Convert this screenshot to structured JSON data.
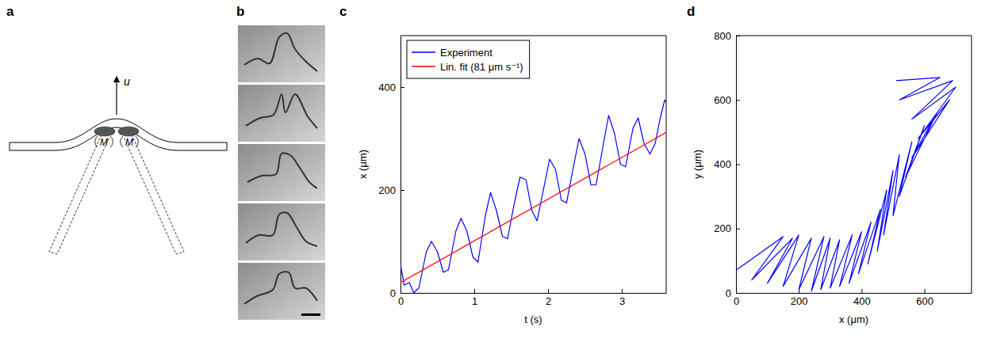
{
  "panel_labels": [
    "a",
    "b",
    "c",
    "d"
  ],
  "diagram": {
    "velocity_label": "u",
    "motor_labels": [
      "M",
      "M"
    ]
  },
  "chart_data": [
    {
      "type": "line",
      "x_label": "t (s)",
      "y_label": "x (μm)",
      "xlim": [
        0,
        3.6
      ],
      "xticks": [
        0,
        1,
        2,
        3
      ],
      "ylim": [
        0,
        500
      ],
      "yticks": [
        0,
        200,
        400
      ],
      "legend": "upper left",
      "series": [
        {
          "name": "Experiment",
          "color": "#0000ff",
          "x": [
            0,
            0.05,
            0.12,
            0.18,
            0.25,
            0.35,
            0.42,
            0.5,
            0.58,
            0.65,
            0.75,
            0.82,
            0.9,
            0.98,
            1.05,
            1.15,
            1.22,
            1.3,
            1.38,
            1.45,
            1.55,
            1.62,
            1.7,
            1.78,
            1.85,
            1.95,
            2.02,
            2.1,
            2.18,
            2.25,
            2.35,
            2.42,
            2.5,
            2.58,
            2.65,
            2.75,
            2.82,
            2.9,
            2.98,
            3.05,
            3.15,
            3.22,
            3.3,
            3.38,
            3.45,
            3.52,
            3.58,
            3.6
          ],
          "values": [
            55,
            15,
            20,
            0,
            10,
            80,
            100,
            80,
            40,
            45,
            120,
            145,
            120,
            70,
            60,
            150,
            195,
            160,
            110,
            105,
            180,
            225,
            220,
            160,
            140,
            210,
            260,
            240,
            180,
            175,
            250,
            300,
            270,
            210,
            210,
            290,
            345,
            310,
            250,
            245,
            320,
            340,
            290,
            270,
            290,
            340,
            375,
            370
          ]
        },
        {
          "name": "Lin. fit (81 μm s⁻¹)",
          "color": "#ff0000",
          "x": [
            0,
            3.6
          ],
          "values": [
            20,
            312
          ]
        }
      ]
    },
    {
      "type": "line",
      "x_label": "x (μm)",
      "y_label": "y (μm)",
      "xlim": [
        0,
        750
      ],
      "xticks": [
        0,
        200,
        400,
        600
      ],
      "ylim": [
        0,
        800
      ],
      "yticks": [
        0,
        200,
        400,
        600,
        800
      ],
      "series": [
        {
          "color": "#0000ff",
          "x": [
            0,
            150,
            50,
            180,
            100,
            200,
            150,
            240,
            200,
            280,
            240,
            300,
            270,
            330,
            300,
            370,
            330,
            400,
            360,
            430,
            390,
            460,
            420,
            480,
            450,
            500,
            470,
            520,
            500,
            560,
            520,
            600,
            540,
            640,
            560,
            680,
            580,
            700,
            560,
            690,
            520,
            650,
            510
          ],
          "values": [
            70,
            175,
            40,
            170,
            30,
            180,
            20,
            170,
            10,
            175,
            5,
            170,
            10,
            165,
            15,
            180,
            20,
            190,
            30,
            220,
            60,
            260,
            90,
            320,
            130,
            380,
            180,
            430,
            240,
            470,
            300,
            520,
            360,
            560,
            420,
            600,
            480,
            640,
            540,
            660,
            600,
            670,
            660
          ]
        }
      ]
    }
  ]
}
